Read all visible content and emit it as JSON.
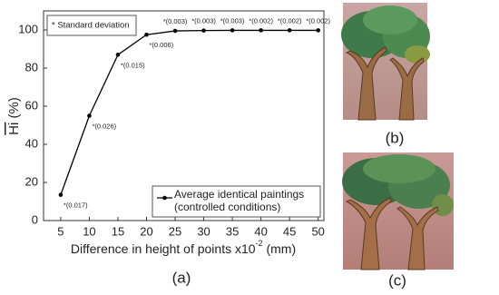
{
  "chart_data": {
    "type": "line",
    "x": [
      5,
      10,
      15,
      20,
      25,
      30,
      35,
      40,
      45,
      50
    ],
    "series": [
      {
        "name": "Average identical paintings (controlled conditions)",
        "color": "#000000",
        "values": [
          13.5,
          55,
          87,
          97.5,
          99.5,
          99.7,
          99.8,
          99.8,
          99.8,
          99.8
        ]
      }
    ],
    "point_annotations": [
      "*(0.017)",
      "*(0.026)",
      "*(0.015)",
      "*(0.006)",
      "*(0.003)",
      "*(0.003)",
      "*(0.003)",
      "*(0.002)",
      "*(0.002)",
      "*(0.002)"
    ],
    "note": "* Standard deviation",
    "ylabel_symbol": "Hi",
    "ylabel_unit": "(%)",
    "xlabel": "Difference in height of points x10",
    "xlabel_exponent": "-2",
    "xlabel_unit": "(mm)",
    "xlim": [
      2,
      51
    ],
    "ylim": [
      0,
      110
    ],
    "xticks": [
      5,
      10,
      15,
      20,
      25,
      30,
      35,
      40,
      45,
      50
    ],
    "yticks": [
      0,
      20,
      40,
      60,
      80,
      100
    ],
    "legend_position": "lower right"
  },
  "panel_labels": [
    "(a)",
    "(b)",
    "(c)"
  ]
}
